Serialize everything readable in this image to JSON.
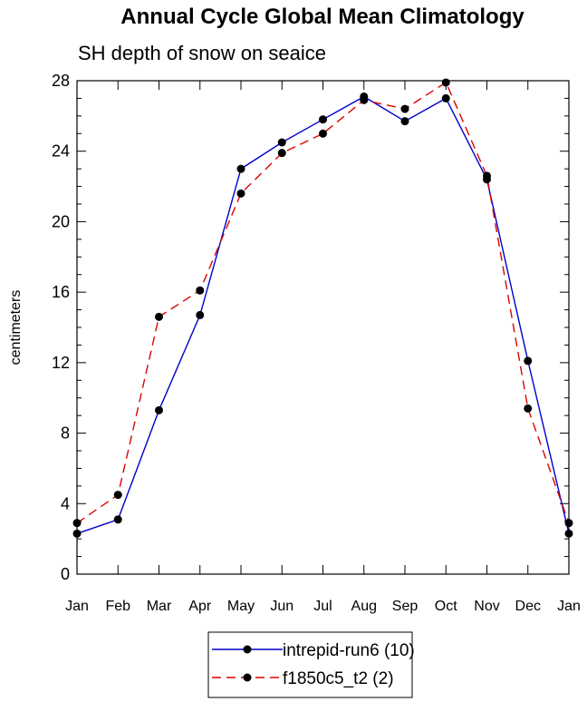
{
  "chart_data": {
    "type": "line",
    "title": "Annual Cycle Global Mean Climatology",
    "subtitle": "SH depth of snow on seaice",
    "xlabel": "",
    "ylabel": "centimeters",
    "categories": [
      "Jan",
      "Feb",
      "Mar",
      "Apr",
      "May",
      "Jun",
      "Jul",
      "Aug",
      "Sep",
      "Oct",
      "Nov",
      "Dec",
      "Jan"
    ],
    "ylim": [
      0,
      28
    ],
    "yticks": [
      0,
      4,
      8,
      12,
      16,
      20,
      24,
      28
    ],
    "series": [
      {
        "name": "intrepid-run6 (10)",
        "color": "#0000cc",
        "dash": "solid",
        "values": [
          2.3,
          3.1,
          9.3,
          14.7,
          23.0,
          24.5,
          25.8,
          27.1,
          25.7,
          27.0,
          22.4,
          12.1,
          2.3
        ]
      },
      {
        "name": "f1850c5_t2 (2)",
        "color": "#dd0000",
        "dash": "dashed",
        "values": [
          2.9,
          4.5,
          14.6,
          16.1,
          21.6,
          23.9,
          25.0,
          26.9,
          26.4,
          27.9,
          22.6,
          9.4,
          2.9
        ]
      }
    ]
  }
}
